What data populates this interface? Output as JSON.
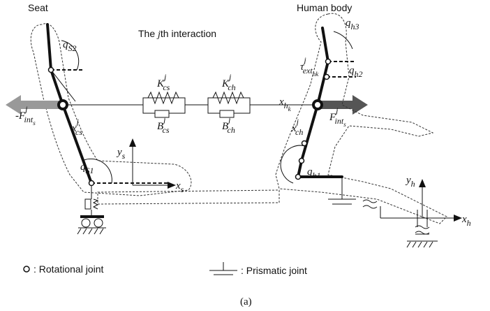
{
  "header": {
    "seat": "Seat",
    "human_body": "Human body",
    "interaction": {
      "pre": "The ",
      "italic": "j",
      "post": "th interaction"
    }
  },
  "symbols": [
    {
      "base": "q",
      "sub": "S2"
    },
    {
      "base": "q",
      "sub": "S1"
    },
    {
      "base": "q",
      "sub": "h3"
    },
    {
      "base": "q",
      "sub": "h2"
    },
    {
      "base": "q",
      "sub": "h1"
    },
    {
      "base": "K",
      "sup": "j",
      "sub": "cs"
    },
    {
      "base": "B",
      "sup": "j",
      "sub": "cs"
    },
    {
      "base": "K",
      "sup": "j",
      "sub": "ch"
    },
    {
      "base": "B",
      "sup": "j",
      "sub": "ch"
    },
    {
      "base": "τ",
      "sup": "j",
      "sub": "ext",
      "subsub": "hk"
    },
    {
      "base": "x",
      "sub": "h",
      "subsub": "k"
    },
    {
      "base": "x",
      "sup": "j",
      "sub": "cs"
    },
    {
      "base": "x",
      "sup": "j",
      "sub": "ch"
    },
    {
      "base": "-F",
      "sup": "j",
      "sub": "int",
      "subsub": "s"
    },
    {
      "base": "F",
      "sup": "j",
      "sub": "int",
      "subsub": "s"
    },
    {
      "base": "y",
      "sub": "s"
    },
    {
      "base": "x",
      "sub": "s"
    },
    {
      "base": "y",
      "sub": "h"
    },
    {
      "base": "x",
      "sub": "h"
    }
  ],
  "legend": {
    "rotational": ": Rotational joint",
    "prismatic": ": Prismatic joint"
  },
  "caption": "(a)"
}
